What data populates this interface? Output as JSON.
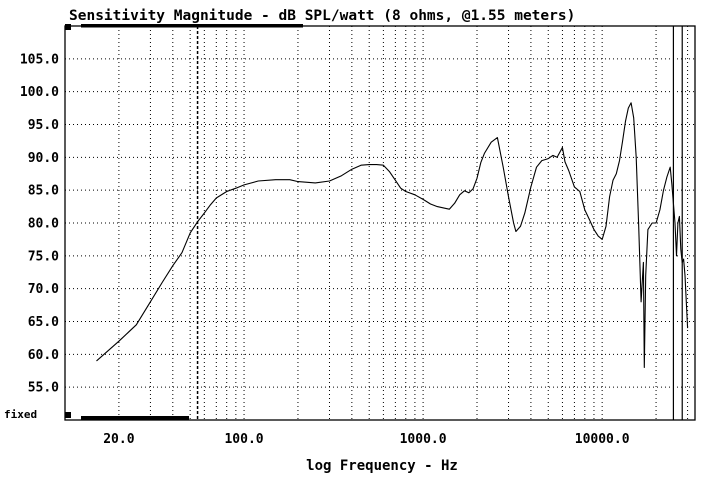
{
  "chart_data": {
    "type": "line",
    "title": "Sensitivity Magnitude - dB SPL/watt (8 ohms, @1.55 meters)",
    "xlabel": "log Frequency - Hz",
    "ylabel": "",
    "x_scale": "log",
    "xlim": [
      10,
      33000
    ],
    "ylim": [
      50,
      110
    ],
    "grid": true,
    "y_ticks": [
      {
        "value": 55,
        "label": "55.0"
      },
      {
        "value": 60,
        "label": "60.0"
      },
      {
        "value": 65,
        "label": "65.0"
      },
      {
        "value": 70,
        "label": "70.0"
      },
      {
        "value": 75,
        "label": "75.0"
      },
      {
        "value": 80,
        "label": "80.0"
      },
      {
        "value": 85,
        "label": "85.0"
      },
      {
        "value": 90,
        "label": "90.0"
      },
      {
        "value": 95,
        "label": "95.0"
      },
      {
        "value": 100,
        "label": "100.0"
      },
      {
        "value": 105,
        "label": "105.0"
      }
    ],
    "x_ticks": [
      {
        "value": 20,
        "label": "20.0"
      },
      {
        "value": 100,
        "label": "100.0"
      },
      {
        "value": 1000,
        "label": "1000.0"
      },
      {
        "value": 10000,
        "label": "10000.0"
      }
    ],
    "bottom_left_label": "fixed",
    "markers": [
      {
        "x": 55,
        "style": "dashed"
      },
      {
        "x": 25000,
        "style": "solid"
      },
      {
        "x": 28000,
        "style": "solid"
      }
    ],
    "series": [
      {
        "name": "",
        "points": [
          [
            15,
            59
          ],
          [
            20,
            62
          ],
          [
            25,
            64.5
          ],
          [
            30,
            68
          ],
          [
            35,
            71
          ],
          [
            40,
            73.5
          ],
          [
            45,
            75.5
          ],
          [
            50,
            78.5
          ],
          [
            55,
            80.2
          ],
          [
            60,
            81.5
          ],
          [
            65,
            82.8
          ],
          [
            70,
            83.8
          ],
          [
            80,
            84.8
          ],
          [
            90,
            85.3
          ],
          [
            100,
            85.8
          ],
          [
            120,
            86.4
          ],
          [
            150,
            86.6
          ],
          [
            180,
            86.6
          ],
          [
            200,
            86.3
          ],
          [
            250,
            86.1
          ],
          [
            300,
            86.4
          ],
          [
            350,
            87.2
          ],
          [
            400,
            88.2
          ],
          [
            450,
            88.8
          ],
          [
            500,
            88.9
          ],
          [
            550,
            88.9
          ],
          [
            600,
            88.8
          ],
          [
            650,
            87.8
          ],
          [
            700,
            86.5
          ],
          [
            750,
            85.3
          ],
          [
            800,
            84.8
          ],
          [
            900,
            84.3
          ],
          [
            1000,
            83.6
          ],
          [
            1100,
            82.9
          ],
          [
            1200,
            82.5
          ],
          [
            1300,
            82.3
          ],
          [
            1400,
            82.1
          ],
          [
            1500,
            83.0
          ],
          [
            1600,
            84.3
          ],
          [
            1700,
            84.9
          ],
          [
            1800,
            84.6
          ],
          [
            1900,
            85.2
          ],
          [
            2000,
            86.8
          ],
          [
            2100,
            89.2
          ],
          [
            2200,
            90.6
          ],
          [
            2400,
            92.3
          ],
          [
            2600,
            93.0
          ],
          [
            2800,
            88.5
          ],
          [
            3000,
            84.0
          ],
          [
            3200,
            80.0
          ],
          [
            3300,
            78.7
          ],
          [
            3500,
            79.5
          ],
          [
            3700,
            81.5
          ],
          [
            4000,
            85.5
          ],
          [
            4300,
            88.5
          ],
          [
            4600,
            89.5
          ],
          [
            5000,
            89.8
          ],
          [
            5300,
            90.3
          ],
          [
            5600,
            90.0
          ],
          [
            6000,
            91.5
          ],
          [
            6200,
            89.3
          ],
          [
            6500,
            88.0
          ],
          [
            7000,
            85.5
          ],
          [
            7500,
            84.8
          ],
          [
            8000,
            82.0
          ],
          [
            8500,
            80.5
          ],
          [
            9000,
            79.0
          ],
          [
            9500,
            78.0
          ],
          [
            10000,
            77.5
          ],
          [
            10500,
            79.5
          ],
          [
            11000,
            84.0
          ],
          [
            11500,
            86.5
          ],
          [
            12000,
            87.5
          ],
          [
            12500,
            89.5
          ],
          [
            13000,
            92.5
          ],
          [
            13500,
            95.5
          ],
          [
            14000,
            97.5
          ],
          [
            14500,
            98.3
          ],
          [
            15000,
            96.0
          ],
          [
            15500,
            90.0
          ],
          [
            16000,
            79.5
          ],
          [
            16500,
            68.0
          ],
          [
            17000,
            74.0
          ],
          [
            17200,
            58.0
          ],
          [
            17500,
            72.0
          ],
          [
            18000,
            79.0
          ],
          [
            19000,
            80.0
          ],
          [
            20000,
            80.0
          ],
          [
            21000,
            82.0
          ],
          [
            22000,
            85.0
          ],
          [
            23000,
            87.0
          ],
          [
            24000,
            88.5
          ],
          [
            24500,
            86.0
          ],
          [
            25000,
            83.0
          ],
          [
            25500,
            80.0
          ],
          [
            26000,
            75.0
          ],
          [
            26500,
            80.0
          ],
          [
            27000,
            81.0
          ],
          [
            27500,
            76.0
          ],
          [
            28000,
            74.0
          ],
          [
            28500,
            74.5
          ],
          [
            29000,
            72.0
          ],
          [
            29500,
            68.0
          ],
          [
            30000,
            64.0
          ]
        ]
      }
    ]
  }
}
